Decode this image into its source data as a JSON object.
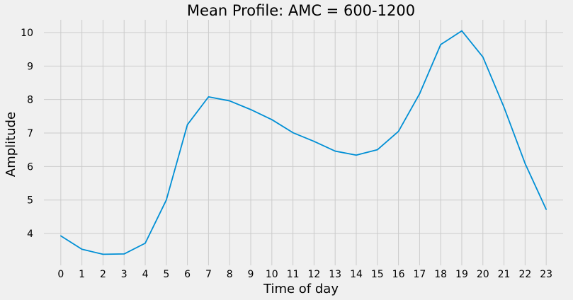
{
  "chart_data": {
    "type": "line",
    "title": "Mean Profile: AMC = 600-1200",
    "xlabel": "Time of day",
    "ylabel": "Amplitude",
    "x": [
      0,
      1,
      2,
      3,
      4,
      5,
      6,
      7,
      8,
      9,
      10,
      11,
      12,
      13,
      14,
      15,
      16,
      17,
      18,
      19,
      20,
      21,
      22,
      23
    ],
    "x_tick_labels": [
      "0",
      "1",
      "2",
      "3",
      "4",
      "5",
      "6",
      "7",
      "8",
      "9",
      "10",
      "11",
      "12",
      "13",
      "14",
      "15",
      "16",
      "17",
      "18",
      "19",
      "20",
      "21",
      "22",
      "23"
    ],
    "series": [
      {
        "values": [
          3.93,
          3.53,
          3.38,
          3.39,
          3.71,
          5.0,
          7.25,
          8.08,
          7.96,
          7.7,
          7.4,
          7.01,
          6.75,
          6.46,
          6.34,
          6.5,
          7.05,
          8.17,
          9.64,
          10.05,
          9.27,
          7.77,
          6.09,
          4.72
        ],
        "color": "#008fd5"
      }
    ],
    "y_ticks": [
      4,
      5,
      6,
      7,
      8,
      9,
      10
    ],
    "xlim": [
      -0.8,
      23.8
    ],
    "ylim": [
      3.05,
      10.38
    ],
    "grid": true,
    "colors": {
      "background": "#f0f0f0",
      "grid": "#cbcbcb",
      "line": "#008fd5"
    }
  }
}
